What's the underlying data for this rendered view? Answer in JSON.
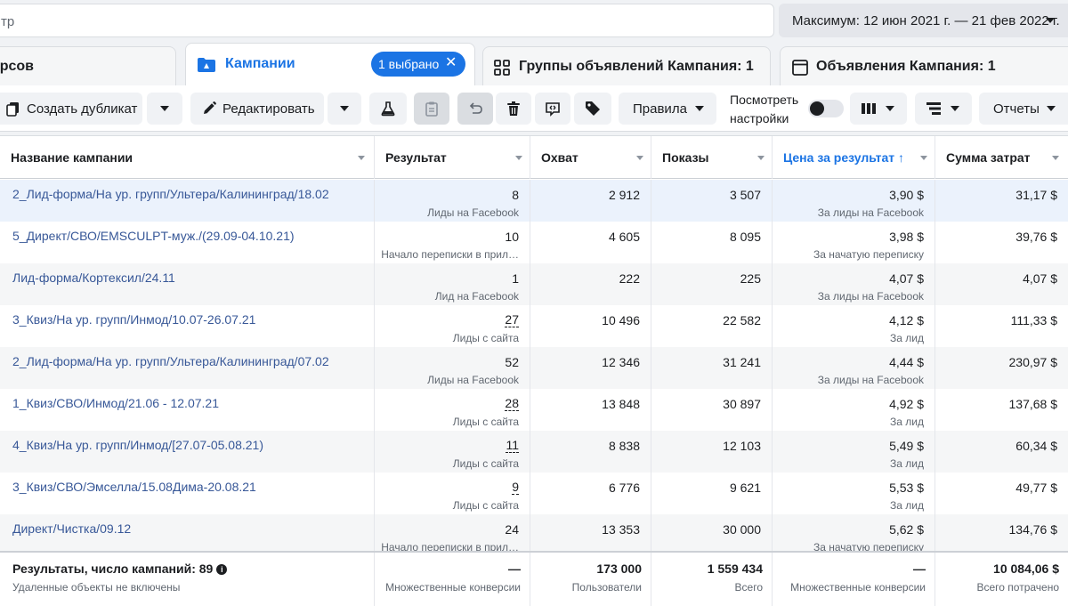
{
  "search": {
    "value": "тр"
  },
  "date_range": {
    "label": "Максимум: 12 июн 2021 г. — 21 фев 2022 г."
  },
  "tabs": {
    "resources": "урсов",
    "campaigns": "Кампании",
    "selected_pill": "1 выбрано",
    "ad_groups": "Группы объявлений Кампания: 1",
    "ads": "Объявления Кампания: 1"
  },
  "toolbar": {
    "duplicate": "Создать дубликат",
    "edit": "Редактировать",
    "rules": "Правила",
    "view_settings_line1": "Посмотреть",
    "view_settings_line2": "настройки",
    "reports": "Отчеты"
  },
  "columns": {
    "name": "Название кампании",
    "result": "Результат",
    "reach": "Охват",
    "impressions": "Показы",
    "cost": "Цена за результат ↑",
    "spend": "Сумма затрат"
  },
  "rows": [
    {
      "name": "2_Лид-форма/На ур. групп/Ультера/Калининград/18.02",
      "result": "8",
      "result_type": "Лиды на Facebook",
      "reach": "2 912",
      "impressions": "3 507",
      "cost": "3,90 $",
      "cost_type": "За лиды на Facebook",
      "spend": "31,17 $"
    },
    {
      "name": "5_Директ/СВО/EMSCULPT-муж./(29.09-04.10.21)",
      "result": "10",
      "result_type": "Начало переписки в прил…",
      "reach": "4 605",
      "impressions": "8 095",
      "cost": "3,98 $",
      "cost_type": "За начатую переписку",
      "spend": "39,76 $"
    },
    {
      "name": "Лид-форма/Кортексил/24.11",
      "result": "1",
      "result_type": "Лид на Facebook",
      "reach": "222",
      "impressions": "225",
      "cost": "4,07 $",
      "cost_type": "За лиды на Facebook",
      "spend": "4,07 $"
    },
    {
      "name": "3_Квиз/На ур. групп/Инмод/10.07-26.07.21",
      "result": "27",
      "result_type": "Лиды с сайта",
      "reach": "10 496",
      "impressions": "22 582",
      "cost": "4,12 $",
      "cost_type": "За лид",
      "spend": "111,33 $"
    },
    {
      "name": "2_Лид-форма/На ур. групп/Ультера/Калининград/07.02",
      "result": "52",
      "result_type": "Лиды на Facebook",
      "reach": "12 346",
      "impressions": "31 241",
      "cost": "4,44 $",
      "cost_type": "За лиды на Facebook",
      "spend": "230,97 $"
    },
    {
      "name": "1_Квиз/СВО/Инмод/21.06 - 12.07.21",
      "result": "28",
      "result_type": "Лиды с сайта",
      "reach": "13 848",
      "impressions": "30 897",
      "cost": "4,92 $",
      "cost_type": "За лид",
      "spend": "137,68 $"
    },
    {
      "name": "4_Квиз/На ур. групп/Инмод/[27.07-05.08.21)",
      "result": "11",
      "result_type": "Лиды с сайта",
      "reach": "8 838",
      "impressions": "12 103",
      "cost": "5,49 $",
      "cost_type": "За лид",
      "spend": "60,34 $"
    },
    {
      "name": "3_Квиз/СВО/Эмселла/15.08Дима-20.08.21",
      "result": "9",
      "result_type": "Лиды с сайта",
      "reach": "6 776",
      "impressions": "9 621",
      "cost": "5,53 $",
      "cost_type": "За лид",
      "spend": "49,77 $"
    },
    {
      "name": "Директ/Чистка/09.12",
      "result": "24",
      "result_type": "Начало переписки в прил…",
      "reach": "13 353",
      "impressions": "30 000",
      "cost": "5,62 $",
      "cost_type": "За начатую переписку",
      "spend": "134,76 $"
    }
  ],
  "totals": {
    "title": "Результаты, число кампаний: 89",
    "note": "Удаленные объекты не включены",
    "result": "—",
    "result_sub": "Множественные конверсии",
    "reach": "173 000",
    "reach_sub": "Пользователи",
    "impressions": "1 559 434",
    "impressions_sub": "Всего",
    "cost": "—",
    "cost_sub": "Множественные конверсии",
    "spend": "10 084,06 $",
    "spend_sub": "Всего потрачено"
  },
  "colors": {
    "accent": "#1b74e4",
    "link": "#385898",
    "selected_row": "#ebf2fc"
  }
}
